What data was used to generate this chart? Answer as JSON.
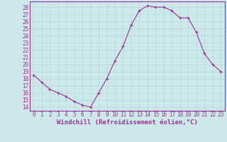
{
  "x": [
    0,
    1,
    2,
    3,
    4,
    5,
    6,
    7,
    8,
    9,
    10,
    11,
    12,
    13,
    14,
    15,
    16,
    17,
    18,
    19,
    20,
    21,
    22,
    23
  ],
  "y": [
    18.5,
    17.5,
    16.5,
    16.0,
    15.5,
    14.8,
    14.3,
    14.0,
    16.0,
    18.0,
    20.5,
    22.5,
    25.5,
    27.5,
    28.2,
    28.0,
    28.0,
    27.5,
    26.5,
    26.5,
    24.5,
    21.5,
    20.0,
    19.0
  ],
  "line_color": "#993399",
  "marker": "+",
  "marker_size": 3,
  "marker_lw": 0.8,
  "line_width": 0.8,
  "xlabel": "Windchill (Refroidissement éolien,°C)",
  "ylabel_ticks": [
    14,
    15,
    16,
    17,
    18,
    19,
    20,
    21,
    22,
    23,
    24,
    25,
    26,
    27,
    28
  ],
  "ylim": [
    13.5,
    28.8
  ],
  "xlim": [
    -0.5,
    23.5
  ],
  "background_color": "#cce8e8",
  "grid_color": "#b8d8d8",
  "tick_color": "#993399",
  "label_color": "#993399",
  "tick_fontsize": 5.5,
  "xlabel_fontsize": 6.5
}
